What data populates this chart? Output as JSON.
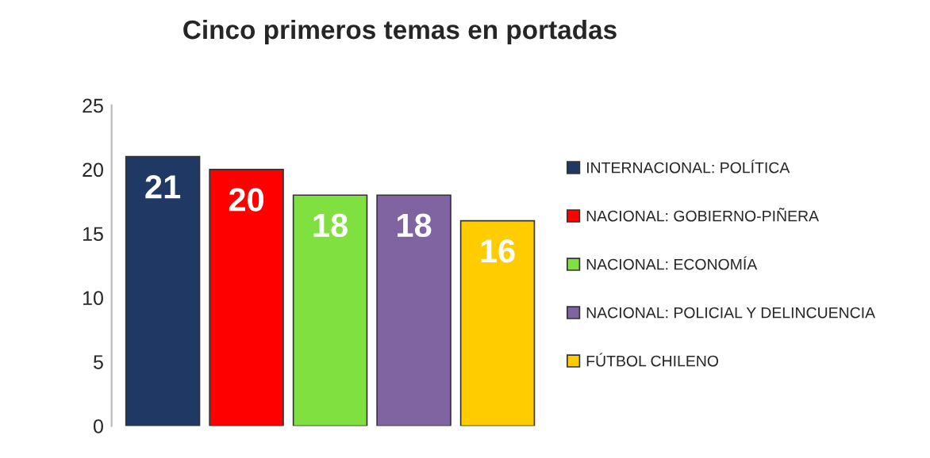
{
  "chart_data": {
    "type": "bar",
    "title": "Cinco primeros temas en portadas",
    "categories": [
      null
    ],
    "series": [
      {
        "name": "INTERNACIONAL: POLÍTICA",
        "color": "#1f3864",
        "values": [
          21
        ]
      },
      {
        "name": "NACIONAL: GOBIERNO-PIÑERA",
        "color": "#ff0000",
        "values": [
          20
        ]
      },
      {
        "name": "NACIONAL: ECONOMÍA",
        "color": "#7fe040",
        "values": [
          18
        ]
      },
      {
        "name": "NACIONAL: POLICIAL Y DELINCUENCIA",
        "color": "#8064a2",
        "values": [
          18
        ]
      },
      {
        "name": "FÚTBOL CHILENO",
        "color": "#ffcc00",
        "values": [
          16
        ]
      }
    ],
    "ylim": [
      0,
      25
    ],
    "yticks": [
      0,
      5,
      10,
      15,
      20,
      25
    ],
    "data_labels": true,
    "legend": "right",
    "grid": false
  }
}
